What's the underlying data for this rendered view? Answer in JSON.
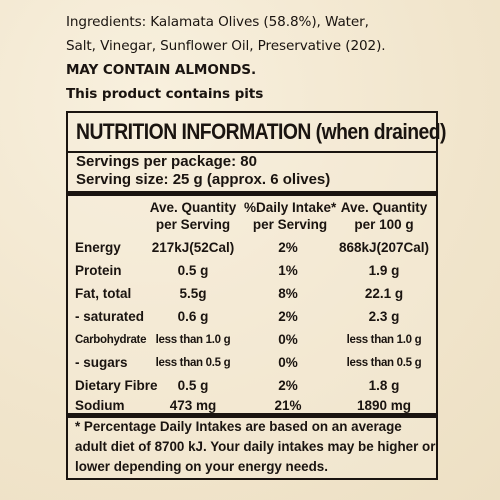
{
  "ingredients": {
    "line1": "Ingredients: Kalamata Olives (58.8%), Water,",
    "line2": "Salt, Vinegar, Sunflower Oil, Preservative (202).",
    "allergen": "MAY CONTAIN ALMONDS.",
    "pits": "This product contains pits"
  },
  "panel": {
    "title": "NUTRITION INFORMATION (when drained)",
    "servings_per_package": "Servings per package: 80",
    "serving_size": "Serving size: 25 g (approx. 6 olives)",
    "headers": {
      "col1_line1": "Ave. Quantity",
      "col1_line2": "per Serving",
      "col2_line1": "%Daily Intake*",
      "col2_line2": "per Serving",
      "col3_line1": "Ave. Quantity",
      "col3_line2": "per 100 g"
    },
    "rows": [
      {
        "nutrient": "Energy",
        "per_serving": "217kJ(52Cal)",
        "daily_intake": "2%",
        "per_100g": "868kJ(207Cal)"
      },
      {
        "nutrient": "Protein",
        "per_serving": "0.5 g",
        "daily_intake": "1%",
        "per_100g": "1.9 g"
      },
      {
        "nutrient": "Fat, total",
        "per_serving": "5.5g",
        "daily_intake": "8%",
        "per_100g": "22.1 g"
      },
      {
        "nutrient": "- saturated",
        "per_serving": "0.6 g",
        "daily_intake": "2%",
        "per_100g": "2.3 g"
      },
      {
        "nutrient": "Carbohydrate",
        "per_serving": "less than 1.0 g",
        "daily_intake": "0%",
        "per_100g": "less than 1.0 g"
      },
      {
        "nutrient": "- sugars",
        "per_serving": "less than 0.5 g",
        "daily_intake": "0%",
        "per_100g": "less than 0.5 g"
      },
      {
        "nutrient": "Dietary Fibre",
        "per_serving": "0.5 g",
        "daily_intake": "2%",
        "per_100g": "1.8 g"
      },
      {
        "nutrient": "Sodium",
        "per_serving": "473 mg",
        "daily_intake": "21%",
        "per_100g": "1890 mg"
      }
    ],
    "footnote": "* Percentage Daily Intakes are based on an average adult diet of 8700 kJ. Your daily intakes may be higher or lower depending on your energy needs."
  }
}
